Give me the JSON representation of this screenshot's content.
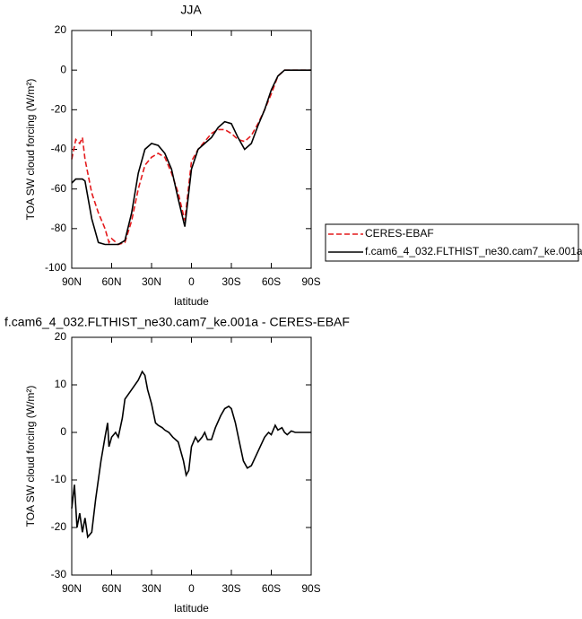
{
  "chart_data": [
    {
      "type": "line",
      "title": "JJA",
      "xlabel": "latitude",
      "ylabel": "TOA SW cloud forcing (W/m²)",
      "x": [
        90,
        87,
        84,
        82,
        80,
        75,
        70,
        65,
        62,
        60,
        55,
        50,
        45,
        40,
        35,
        30,
        25,
        20,
        15,
        10,
        5,
        0,
        -5,
        -10,
        -15,
        -20,
        -25,
        -30,
        -35,
        -40,
        -45,
        -50,
        -55,
        -60,
        -65,
        -70,
        -75,
        -80,
        -85,
        -90
      ],
      "series": [
        {
          "name": "CERES-EBAF",
          "color": "#e41a1c",
          "dash": true,
          "values": [
            -45,
            -35,
            -37,
            -34,
            -45,
            -62,
            -72,
            -80,
            -87,
            -85,
            -88,
            -87,
            -76,
            -60,
            -48,
            -44,
            -42,
            -44,
            -52,
            -62,
            -76,
            -46,
            -40,
            -36,
            -32,
            -30,
            -30,
            -32,
            -35,
            -36,
            -33,
            -27,
            -20,
            -12,
            -3,
            0,
            0,
            0,
            0,
            0
          ]
        },
        {
          "name": "f.cam6_4_032.FLTHIST_ne30.cam7_ke.001a",
          "color": "#000000",
          "dash": false,
          "values": [
            -57,
            -55,
            -55,
            -55,
            -56,
            -75,
            -87,
            -88,
            -88,
            -88,
            -88,
            -86,
            -72,
            -52,
            -40,
            -37,
            -38,
            -42,
            -50,
            -65,
            -79,
            -50,
            -40,
            -37,
            -34,
            -29,
            -26,
            -27,
            -34,
            -40,
            -37,
            -28,
            -20,
            -10,
            -3,
            0,
            0,
            0,
            0,
            0
          ]
        }
      ],
      "xlim": [
        90,
        -90
      ],
      "xticks": [
        {
          "value": 90,
          "label": "90N"
        },
        {
          "value": 60,
          "label": "60N"
        },
        {
          "value": 30,
          "label": "30N"
        },
        0,
        {
          "value": -30,
          "label": "30S"
        },
        {
          "value": -60,
          "label": "60S"
        },
        {
          "value": -90,
          "label": "90S"
        }
      ],
      "ylim": [
        -100,
        20
      ],
      "yticks": [
        -100,
        -80,
        -60,
        -40,
        -20,
        0,
        20
      ],
      "legend": "right"
    },
    {
      "type": "line",
      "title": "f.cam6_4_032.FLTHIST_ne30.cam7_ke.001a - CERES-EBAF",
      "xlabel": "latitude",
      "ylabel": "TOA SW cloud forcing (W/m²)",
      "x": [
        90,
        88,
        86,
        84,
        82,
        80,
        78,
        75,
        72,
        68,
        65,
        63,
        62,
        60,
        57,
        55,
        52,
        50,
        45,
        40,
        37,
        35,
        33,
        30,
        27,
        25,
        22,
        20,
        17,
        14,
        10,
        6,
        4,
        2,
        0,
        -3,
        -5,
        -8,
        -10,
        -12,
        -15,
        -18,
        -22,
        -25,
        -28,
        -30,
        -33,
        -36,
        -39,
        -42,
        -45,
        -50,
        -55,
        -58,
        -60,
        -63,
        -65,
        -68,
        -70,
        -72,
        -75,
        -78,
        -80,
        -90
      ],
      "series": [
        {
          "color": "#000000",
          "dash": false,
          "values": [
            -16,
            -11,
            -20,
            -17,
            -21,
            -18,
            -22,
            -21,
            -14,
            -6,
            -1,
            2,
            -3,
            -1,
            0,
            -1,
            3,
            7,
            9,
            11,
            12.8,
            12,
            9,
            6,
            2,
            1.5,
            1,
            0.5,
            0,
            -1,
            -2,
            -6,
            -9,
            -8,
            -3,
            -1,
            -2,
            -1,
            0,
            -1.5,
            -1.5,
            1,
            3.5,
            5,
            5.5,
            5,
            2,
            -2,
            -6,
            -7.5,
            -7,
            -4,
            -1,
            0,
            -0.5,
            1.5,
            0.5,
            1,
            0,
            -0.5,
            0.3,
            0,
            0,
            0
          ]
        }
      ],
      "xlim": [
        90,
        -90
      ],
      "xticks": [
        {
          "value": 90,
          "label": "90N"
        },
        {
          "value": 60,
          "label": "60N"
        },
        {
          "value": 30,
          "label": "30N"
        },
        0,
        {
          "value": -30,
          "label": "30S"
        },
        {
          "value": -60,
          "label": "60S"
        },
        {
          "value": -90,
          "label": "90S"
        }
      ],
      "ylim": [
        -30,
        20
      ],
      "yticks": [
        -30,
        -20,
        -10,
        0,
        10,
        20
      ]
    }
  ]
}
